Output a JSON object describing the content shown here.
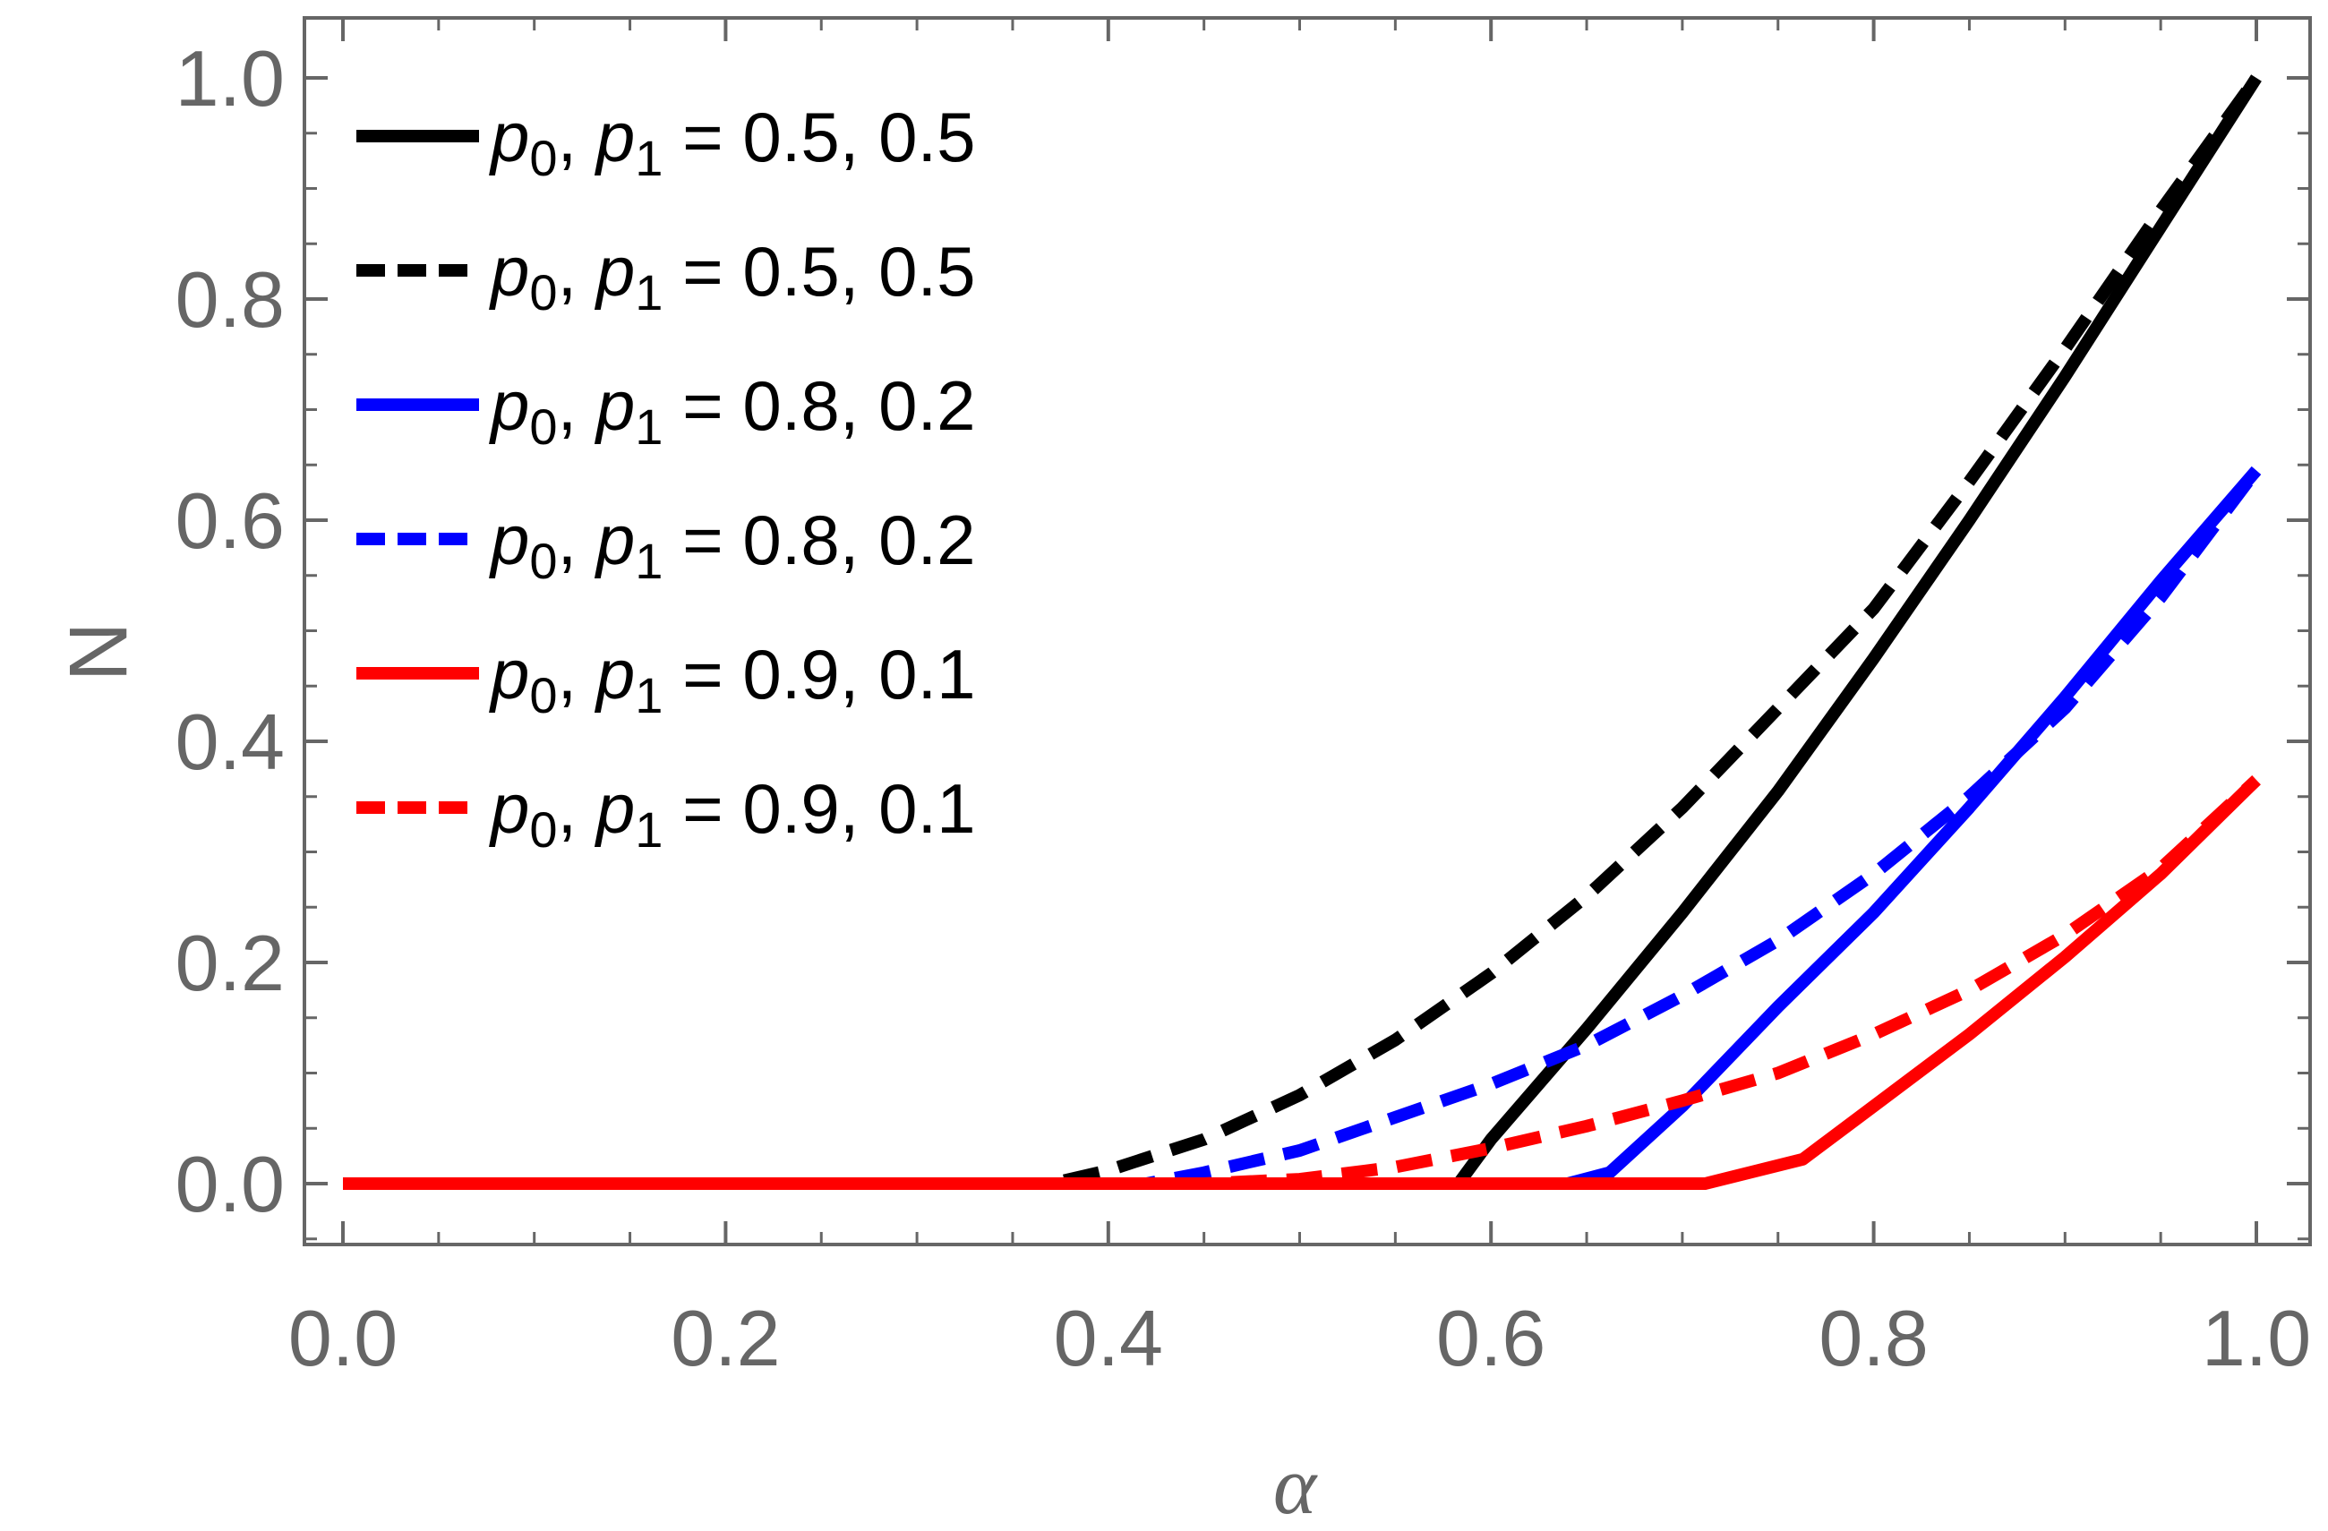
{
  "chart_data": {
    "type": "line",
    "title": "",
    "xlabel": "α",
    "ylabel": "N",
    "xlim": [
      0.0,
      1.0
    ],
    "ylim": [
      -0.05,
      1.03
    ],
    "xticks": [
      "0.0",
      "0.2",
      "0.4",
      "0.6",
      "0.8",
      "1.0"
    ],
    "yticks": [
      "0.0",
      "0.2",
      "0.4",
      "0.6",
      "0.8",
      "1.0"
    ],
    "grid": false,
    "legend_position": "top-left",
    "series": [
      {
        "name": "p0, p1 = 0.5, 0.5",
        "legend": {
          "a": "p",
          "a_sub": "0",
          "b": "p",
          "b_sub": "1",
          "value": " = 0.5, 0.5"
        },
        "color": "#000000",
        "style": "solid",
        "x": [
          0.0,
          0.583,
          0.6,
          0.65,
          0.7,
          0.75,
          0.8,
          0.85,
          0.9,
          0.95,
          1.0
        ],
        "y": [
          0.0,
          0.0,
          0.04,
          0.14,
          0.245,
          0.355,
          0.475,
          0.6,
          0.73,
          0.865,
          1.0
        ]
      },
      {
        "name": "p0, p1 = 0.5, 0.5",
        "legend": {
          "a": "p",
          "a_sub": "0",
          "b": "p",
          "b_sub": "1",
          "value": " = 0.5, 0.5"
        },
        "color": "#000000",
        "style": "dashed",
        "x": [
          0.0,
          0.37,
          0.4,
          0.45,
          0.5,
          0.55,
          0.6,
          0.65,
          0.7,
          0.75,
          0.8,
          0.85,
          0.9,
          0.95,
          1.0
        ],
        "y": [
          0.0,
          0.0,
          0.012,
          0.04,
          0.08,
          0.13,
          0.19,
          0.26,
          0.34,
          0.43,
          0.52,
          0.635,
          0.755,
          0.88,
          1.0
        ]
      },
      {
        "name": "p0, p1 = 0.8, 0.2",
        "legend": {
          "a": "p",
          "a_sub": "0",
          "b": "p",
          "b_sub": "1",
          "value": " = 0.8, 0.2"
        },
        "color": "#0000ff",
        "style": "solid",
        "x": [
          0.0,
          0.64,
          0.662,
          0.7,
          0.75,
          0.8,
          0.85,
          0.9,
          0.95,
          1.0
        ],
        "y": [
          0.0,
          0.0,
          0.01,
          0.07,
          0.16,
          0.245,
          0.34,
          0.44,
          0.545,
          0.645
        ]
      },
      {
        "name": "p0, p1 = 0.8, 0.2",
        "legend": {
          "a": "p",
          "a_sub": "0",
          "b": "p",
          "b_sub": "1",
          "value": " = 0.8, 0.2"
        },
        "color": "#0000ff",
        "style": "dashed",
        "x": [
          0.0,
          0.42,
          0.45,
          0.5,
          0.55,
          0.6,
          0.65,
          0.7,
          0.75,
          0.8,
          0.85,
          0.9,
          0.95,
          1.0
        ],
        "y": [
          0.0,
          0.0,
          0.01,
          0.03,
          0.06,
          0.09,
          0.125,
          0.17,
          0.22,
          0.28,
          0.35,
          0.43,
          0.53,
          0.645
        ]
      },
      {
        "name": "p0, p1 = 0.9, 0.1",
        "legend": {
          "a": "p",
          "a_sub": "0",
          "b": "p",
          "b_sub": "1",
          "value": " = 0.9, 0.1"
        },
        "color": "#ff0000",
        "style": "solid",
        "x": [
          0.0,
          0.712,
          0.763,
          0.8,
          0.85,
          0.9,
          0.95,
          1.0
        ],
        "y": [
          0.0,
          0.0,
          0.022,
          0.07,
          0.135,
          0.205,
          0.28,
          0.365
        ]
      },
      {
        "name": "p0, p1 = 0.9, 0.1",
        "legend": {
          "a": "p",
          "a_sub": "0",
          "b": "p",
          "b_sub": "1",
          "value": " = 0.9, 0.1"
        },
        "color": "#ff0000",
        "style": "dashed",
        "x": [
          0.0,
          0.45,
          0.5,
          0.55,
          0.6,
          0.65,
          0.7,
          0.75,
          0.8,
          0.85,
          0.9,
          0.95,
          1.0
        ],
        "y": [
          0.0,
          0.0,
          0.004,
          0.015,
          0.032,
          0.052,
          0.075,
          0.1,
          0.135,
          0.175,
          0.225,
          0.285,
          0.365
        ]
      }
    ]
  }
}
